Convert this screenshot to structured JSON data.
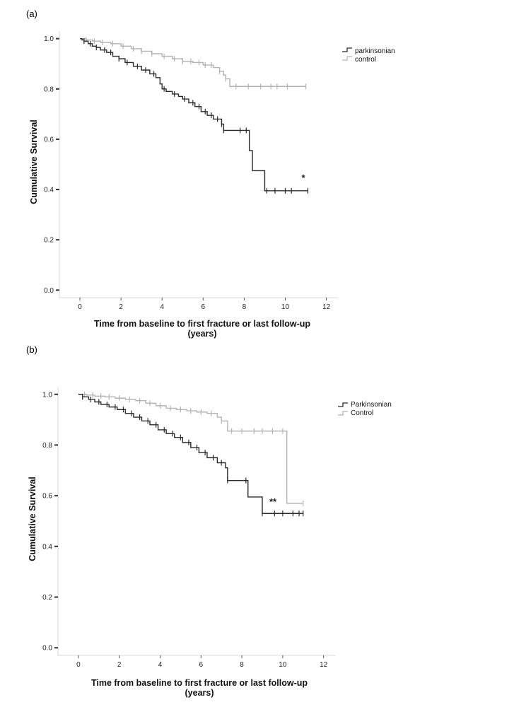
{
  "chart_data": [
    {
      "type": "line",
      "panel_label": "(a)",
      "title": "",
      "xlabel_line1": "Time from baseline to first fracture or last follow-up",
      "xlabel_line2": "(years)",
      "ylabel": "Cumulative Survival",
      "xlim": [
        -1,
        12.6
      ],
      "ylim": [
        -0.03,
        1.03
      ],
      "xticks": [
        0,
        2,
        4,
        6,
        8,
        10,
        12
      ],
      "yticks": [
        0.0,
        0.2,
        0.4,
        0.6,
        0.8,
        1.0
      ],
      "xtick_labels": [
        "0",
        "2",
        "4",
        "6",
        "8",
        "10",
        "12"
      ],
      "ytick_labels": [
        "0.0",
        "0.2",
        "0.4",
        "0.6",
        "0.8",
        "1.0"
      ],
      "legend_position": "top-right",
      "annotation": {
        "text": "*",
        "x": 10.9,
        "y": 0.43
      },
      "series": [
        {
          "name": "parkinsonian",
          "color": "#2b2b2b",
          "x": [
            0,
            0.1,
            0.2,
            0.4,
            0.6,
            0.8,
            1.0,
            1.3,
            1.6,
            1.9,
            2.2,
            2.6,
            3.0,
            3.4,
            3.7,
            3.9,
            4.0,
            4.2,
            4.5,
            4.8,
            5.0,
            5.3,
            5.6,
            5.9,
            6.2,
            6.5,
            6.9,
            7.0,
            8.1,
            8.25,
            8.4,
            9.0,
            11.1
          ],
          "y": [
            1.0,
            0.995,
            0.99,
            0.98,
            0.97,
            0.965,
            0.955,
            0.945,
            0.93,
            0.92,
            0.905,
            0.89,
            0.875,
            0.86,
            0.845,
            0.82,
            0.8,
            0.79,
            0.78,
            0.77,
            0.76,
            0.745,
            0.73,
            0.71,
            0.695,
            0.68,
            0.66,
            0.635,
            0.635,
            0.555,
            0.475,
            0.395,
            0.395
          ],
          "censored_x": [
            0.2,
            0.5,
            0.8,
            1.2,
            1.5,
            1.9,
            2.3,
            2.8,
            3.2,
            3.6,
            4.1,
            4.6,
            5.1,
            5.5,
            5.8,
            6.1,
            6.4,
            6.7,
            6.9,
            7.0,
            7.8,
            8.1,
            9.1,
            9.5,
            10.0,
            10.3,
            11.1
          ]
        },
        {
          "name": "control",
          "color": "#b3b3b3",
          "x": [
            0,
            0.3,
            0.6,
            1.0,
            1.5,
            2.0,
            2.5,
            3.0,
            3.5,
            4.0,
            4.5,
            5.0,
            5.5,
            6.0,
            6.5,
            6.8,
            7.0,
            7.1,
            7.3,
            11.0
          ],
          "y": [
            1.0,
            0.995,
            0.99,
            0.985,
            0.98,
            0.97,
            0.96,
            0.95,
            0.94,
            0.93,
            0.92,
            0.91,
            0.905,
            0.895,
            0.885,
            0.87,
            0.855,
            0.84,
            0.81,
            0.81
          ],
          "censored_x": [
            0.3,
            0.7,
            1.1,
            1.6,
            2.1,
            2.6,
            3.0,
            3.5,
            4.1,
            4.6,
            5.0,
            5.4,
            5.8,
            6.1,
            6.4,
            6.8,
            7.1,
            7.6,
            8.2,
            8.8,
            9.3,
            9.6,
            10.1,
            11.0
          ]
        }
      ]
    },
    {
      "type": "line",
      "panel_label": "(b)",
      "title": "",
      "xlabel_line1": "Time from baseline to first fracture or last follow-up",
      "xlabel_line2": "(years)",
      "ylabel": "Cumulative Survival",
      "xlim": [
        -1,
        12.6
      ],
      "ylim": [
        -0.03,
        1.03
      ],
      "xticks": [
        0,
        2,
        4,
        6,
        8,
        10,
        12
      ],
      "yticks": [
        0.0,
        0.2,
        0.4,
        0.6,
        0.8,
        1.0
      ],
      "xtick_labels": [
        "0",
        "2",
        "4",
        "6",
        "8",
        "10",
        "12"
      ],
      "ytick_labels": [
        "0.0",
        "0.2",
        "0.4",
        "0.6",
        "0.8",
        "1.0"
      ],
      "legend_position": "top-right",
      "annotation": {
        "text": "**",
        "x": 9.4,
        "y": 0.56
      },
      "series": [
        {
          "name": "Parkinsonian",
          "color": "#2b2b2b",
          "x": [
            0,
            0.2,
            0.5,
            0.8,
            1.1,
            1.5,
            1.9,
            2.3,
            2.7,
            3.1,
            3.5,
            3.9,
            4.3,
            4.7,
            5.1,
            5.5,
            5.9,
            6.3,
            6.8,
            7.2,
            7.3,
            8.3,
            9.0,
            11.0
          ],
          "y": [
            1.0,
            0.99,
            0.98,
            0.97,
            0.96,
            0.95,
            0.94,
            0.925,
            0.91,
            0.895,
            0.88,
            0.86,
            0.845,
            0.83,
            0.81,
            0.79,
            0.77,
            0.75,
            0.73,
            0.71,
            0.66,
            0.595,
            0.53,
            0.53
          ],
          "censored_x": [
            0.2,
            0.6,
            1.0,
            1.4,
            1.8,
            2.2,
            2.6,
            3.0,
            3.4,
            3.8,
            4.2,
            4.6,
            5.0,
            5.4,
            5.8,
            6.2,
            6.6,
            7.0,
            7.3,
            8.2,
            9.0,
            9.6,
            10.0,
            10.5,
            10.8,
            11.0
          ]
        },
        {
          "name": "Control",
          "color": "#b3b3b3",
          "x": [
            0,
            0.4,
            0.8,
            1.3,
            1.8,
            2.3,
            2.8,
            3.3,
            3.8,
            4.3,
            4.8,
            5.3,
            5.8,
            6.3,
            6.8,
            7.0,
            7.3,
            10.2,
            11.0
          ],
          "y": [
            1.0,
            0.997,
            0.993,
            0.99,
            0.985,
            0.98,
            0.975,
            0.965,
            0.955,
            0.945,
            0.94,
            0.935,
            0.93,
            0.925,
            0.91,
            0.895,
            0.855,
            0.57,
            0.57
          ],
          "censored_x": [
            0.3,
            0.7,
            1.1,
            1.5,
            2.0,
            2.5,
            3.0,
            3.5,
            4.0,
            4.5,
            5.0,
            5.5,
            6.0,
            6.5,
            7.0,
            7.5,
            8.0,
            8.6,
            9.0,
            9.5,
            10.0,
            11.0
          ]
        }
      ]
    }
  ]
}
